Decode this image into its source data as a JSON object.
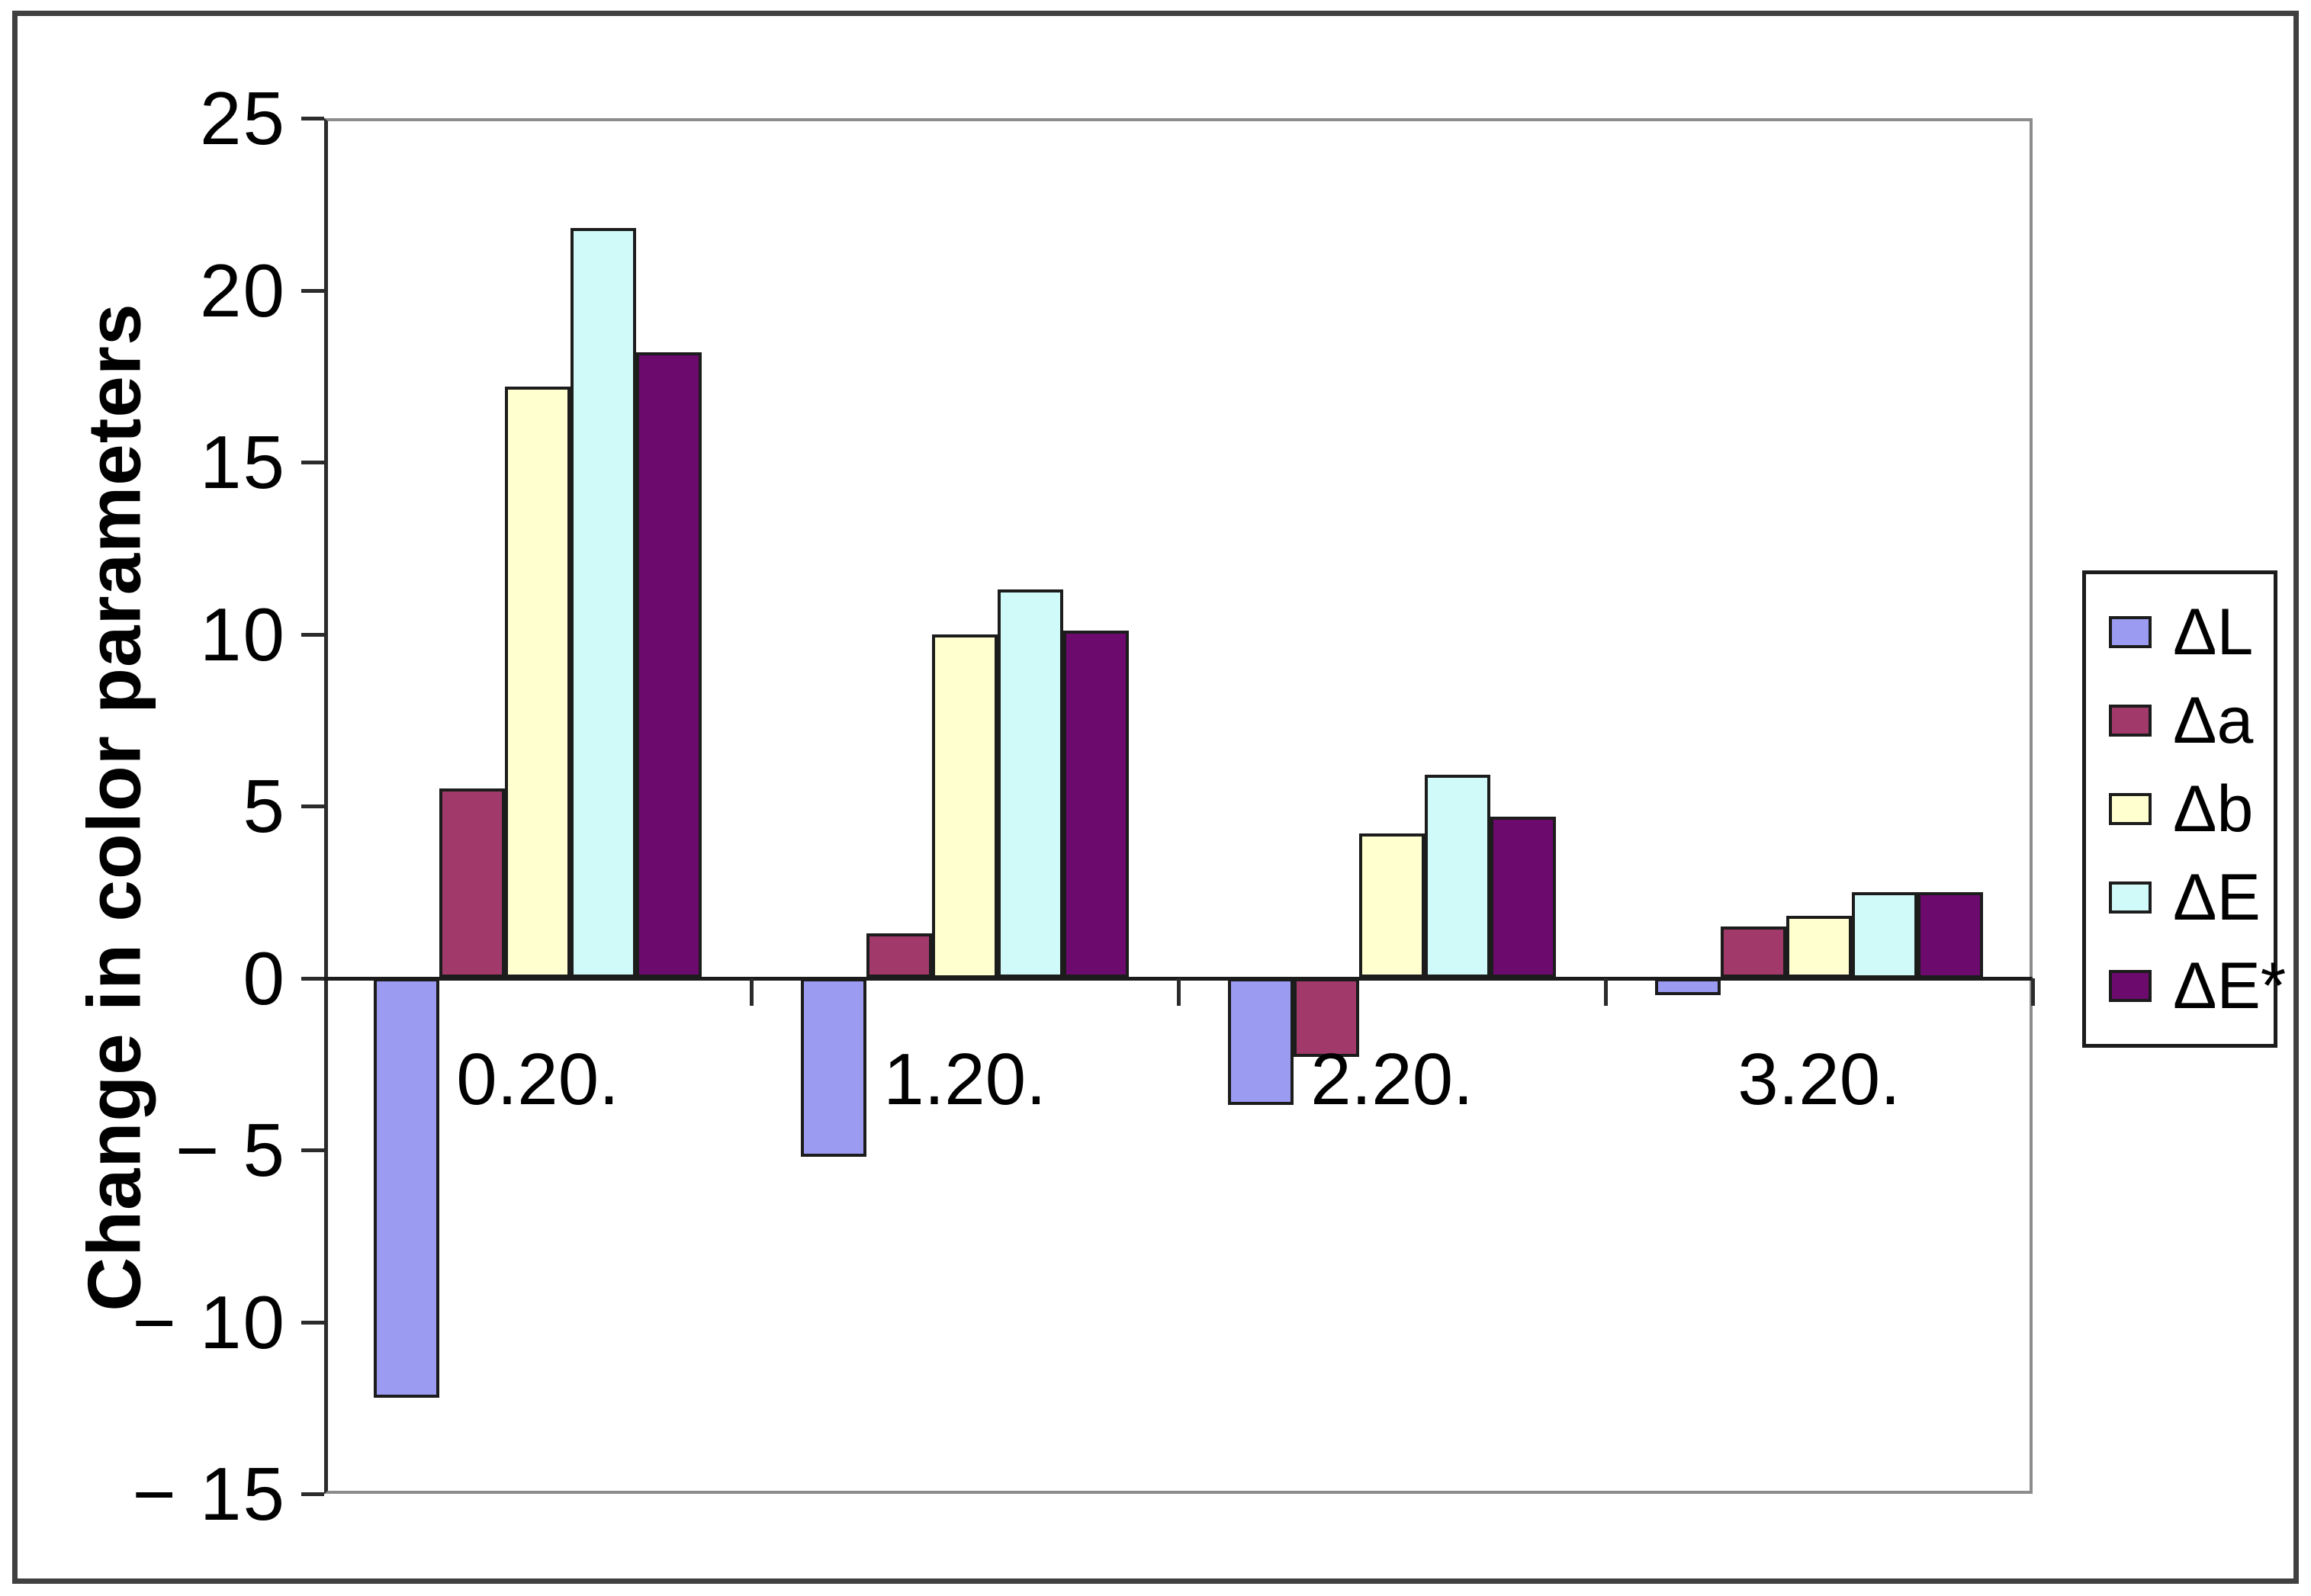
{
  "figure": {
    "background": "#ffffff",
    "border_color": "#404040"
  },
  "chart_data": {
    "type": "bar",
    "title": "",
    "xlabel": "",
    "ylabel": "Change in color parameters",
    "categories": [
      "0.20.",
      "1.20.",
      "2.20.",
      "3.20."
    ],
    "series": [
      {
        "name": "ΔL",
        "color": "#9b9bf2",
        "values": [
          -12.2,
          -5.2,
          -3.7,
          -0.5
        ]
      },
      {
        "name": "Δa",
        "color": "#a13a6b",
        "values": [
          5.5,
          1.3,
          -2.3,
          1.5
        ]
      },
      {
        "name": "Δb",
        "color": "#ffffcf",
        "values": [
          17.2,
          10.0,
          4.2,
          1.8
        ]
      },
      {
        "name": "ΔE",
        "color": "#d0fafa",
        "values": [
          21.8,
          11.3,
          5.9,
          2.5
        ]
      },
      {
        "name": "ΔE*",
        "color": "#6c0a6e",
        "values": [
          18.2,
          10.1,
          4.7,
          2.5
        ]
      }
    ],
    "ylim": [
      -15,
      25
    ],
    "ytick_step": 5,
    "ytick_labels": [
      "25",
      "20",
      "15",
      "10",
      "5",
      "0",
      "− 5",
      "− 10",
      "− 15"
    ],
    "ytick_values": [
      25,
      20,
      15,
      10,
      5,
      0,
      -5,
      -10,
      -15
    ],
    "grid": false,
    "legend_position": "right",
    "legend_entries": [
      "ΔL",
      "Δa",
      "Δb",
      "ΔE",
      "ΔE*"
    ]
  }
}
